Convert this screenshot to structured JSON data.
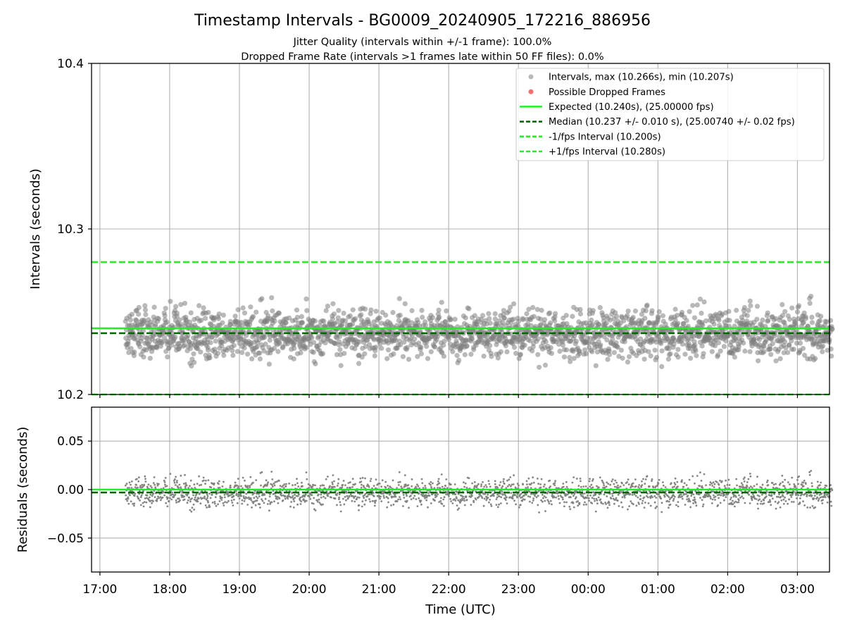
{
  "figure": {
    "title": "Timestamp Intervals - BG0009_20240905_172216_886956",
    "subtitle_1": "Jitter Quality (intervals within +/-1 frame): 100.0%",
    "subtitle_2": "Dropped Frame Rate (intervals >1 frames late within 50 FF files): 0.0%"
  },
  "colors": {
    "points": "#808080",
    "dropped": "#f07070",
    "expected": "#22ee22",
    "median": "#006400",
    "interval": "#22ee22",
    "grid": "#b0b0b0"
  },
  "chart_data": [
    {
      "type": "scatter",
      "name": "top",
      "ylabel": "Intervals (seconds)",
      "xlabel": "",
      "ylim": [
        10.2,
        10.4
      ],
      "yticks": [
        "10.2",
        "10.3",
        "10.4"
      ],
      "xlim_hours": [
        16.88,
        27.46
      ],
      "xticks": [
        "17:00",
        "18:00",
        "19:00",
        "20:00",
        "21:00",
        "22:00",
        "23:00",
        "00:00",
        "01:00",
        "02:00",
        "03:00"
      ],
      "grid": true,
      "legend_position": "top-right",
      "legend": [
        "Intervals, max (10.266s), min (10.207s)",
        "Possible Dropped Frames",
        "Expected (10.240s), (25.00000 fps)",
        "Median (10.237 +/- 0.010 s), (25.00740 +/- 0.02 fps)",
        "-1/fps Interval (10.200s)",
        "+1/fps Interval (10.280s)"
      ],
      "lines": {
        "expected": 10.24,
        "median": 10.237,
        "minus_1fps": 10.2,
        "plus_1fps": 10.28
      },
      "points_summary": {
        "x_start": "17:22",
        "x_end": "03:30",
        "y_center": 10.237,
        "y_std": 0.01,
        "y_max": 10.266,
        "y_min": 10.207,
        "dropped_frames": 0
      }
    },
    {
      "type": "scatter",
      "name": "bottom",
      "ylabel": "Residuals (seconds)",
      "xlabel": "Time (UTC)",
      "ylim": [
        -0.085,
        0.085
      ],
      "yticks": [
        "0.05",
        "0.00",
        "−0.05"
      ],
      "xlim_hours": [
        16.88,
        27.46
      ],
      "xticks": [
        "17:00",
        "18:00",
        "19:00",
        "20:00",
        "21:00",
        "22:00",
        "23:00",
        "00:00",
        "01:00",
        "02:00",
        "03:00"
      ],
      "grid": true,
      "lines": {
        "zero": 0.0,
        "median": -0.003
      },
      "points_summary": {
        "x_start": "17:22",
        "x_end": "03:30",
        "y_center": -0.003,
        "y_std": 0.01,
        "y_max": 0.026,
        "y_min": -0.033
      }
    }
  ]
}
